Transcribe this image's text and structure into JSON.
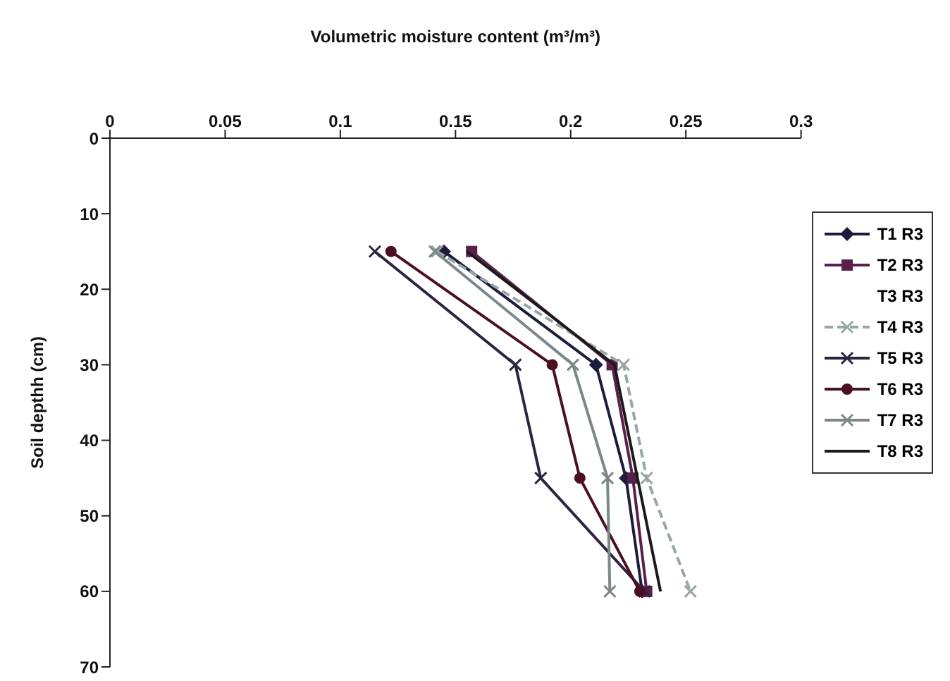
{
  "chart_data": {
    "type": "line",
    "xlabel": "Volumetric moisture content (m³/m³)",
    "ylabel": "Soil depthh (cm)",
    "xlim": [
      0,
      0.3
    ],
    "xticks": [
      0,
      0.05,
      0.1,
      0.15,
      0.2,
      0.25,
      0.3
    ],
    "ylim": [
      70,
      0
    ],
    "yticks": [
      0,
      10,
      20,
      30,
      40,
      50,
      60,
      70
    ],
    "grid": false,
    "legend": "right",
    "line_style": "solid",
    "series": [
      {
        "name": "T1 R3",
        "color": "#1c1c3c",
        "marker": "diamond",
        "x": [
          0.145,
          0.211,
          0.224,
          0.231
        ],
        "values": [
          15,
          30,
          45,
          60
        ]
      },
      {
        "name": "T2 R3",
        "color": "#5a1f4a",
        "marker": "square",
        "x": [
          0.157,
          0.218,
          0.227,
          0.233
        ],
        "values": [
          15,
          30,
          45,
          60
        ]
      },
      {
        "name": "T3 R3",
        "marker": "none",
        "x": [
          null,
          null,
          null,
          null
        ],
        "values": [
          null,
          null,
          null,
          null
        ]
      },
      {
        "name": "T4 R3",
        "color": "#9aa6a6",
        "marker": "cross",
        "line_style": "dashed",
        "x": [
          0.142,
          0.223,
          0.233,
          0.252
        ],
        "values": [
          15,
          30,
          45,
          60
        ]
      },
      {
        "name": "T5 R3",
        "color": "#2e2440",
        "marker": "cross",
        "x": [
          0.115,
          0.176,
          0.187,
          0.232
        ],
        "values": [
          15,
          30,
          45,
          60
        ]
      },
      {
        "name": "T6 R3",
        "color": "#4a1020",
        "marker": "circle",
        "x": [
          0.122,
          0.192,
          0.204,
          0.23
        ],
        "values": [
          15,
          30,
          45,
          60
        ]
      },
      {
        "name": "T7 R3",
        "color": "#7a8888",
        "marker": "cross",
        "x": [
          0.141,
          0.201,
          0.216,
          0.217
        ],
        "values": [
          15,
          30,
          45,
          60
        ]
      },
      {
        "name": "T8 R3",
        "color": "#1a1a1a",
        "marker": "none",
        "x": [
          0.155,
          0.219,
          0.229,
          0.239
        ],
        "values": [
          15,
          30,
          45,
          60
        ]
      }
    ]
  }
}
